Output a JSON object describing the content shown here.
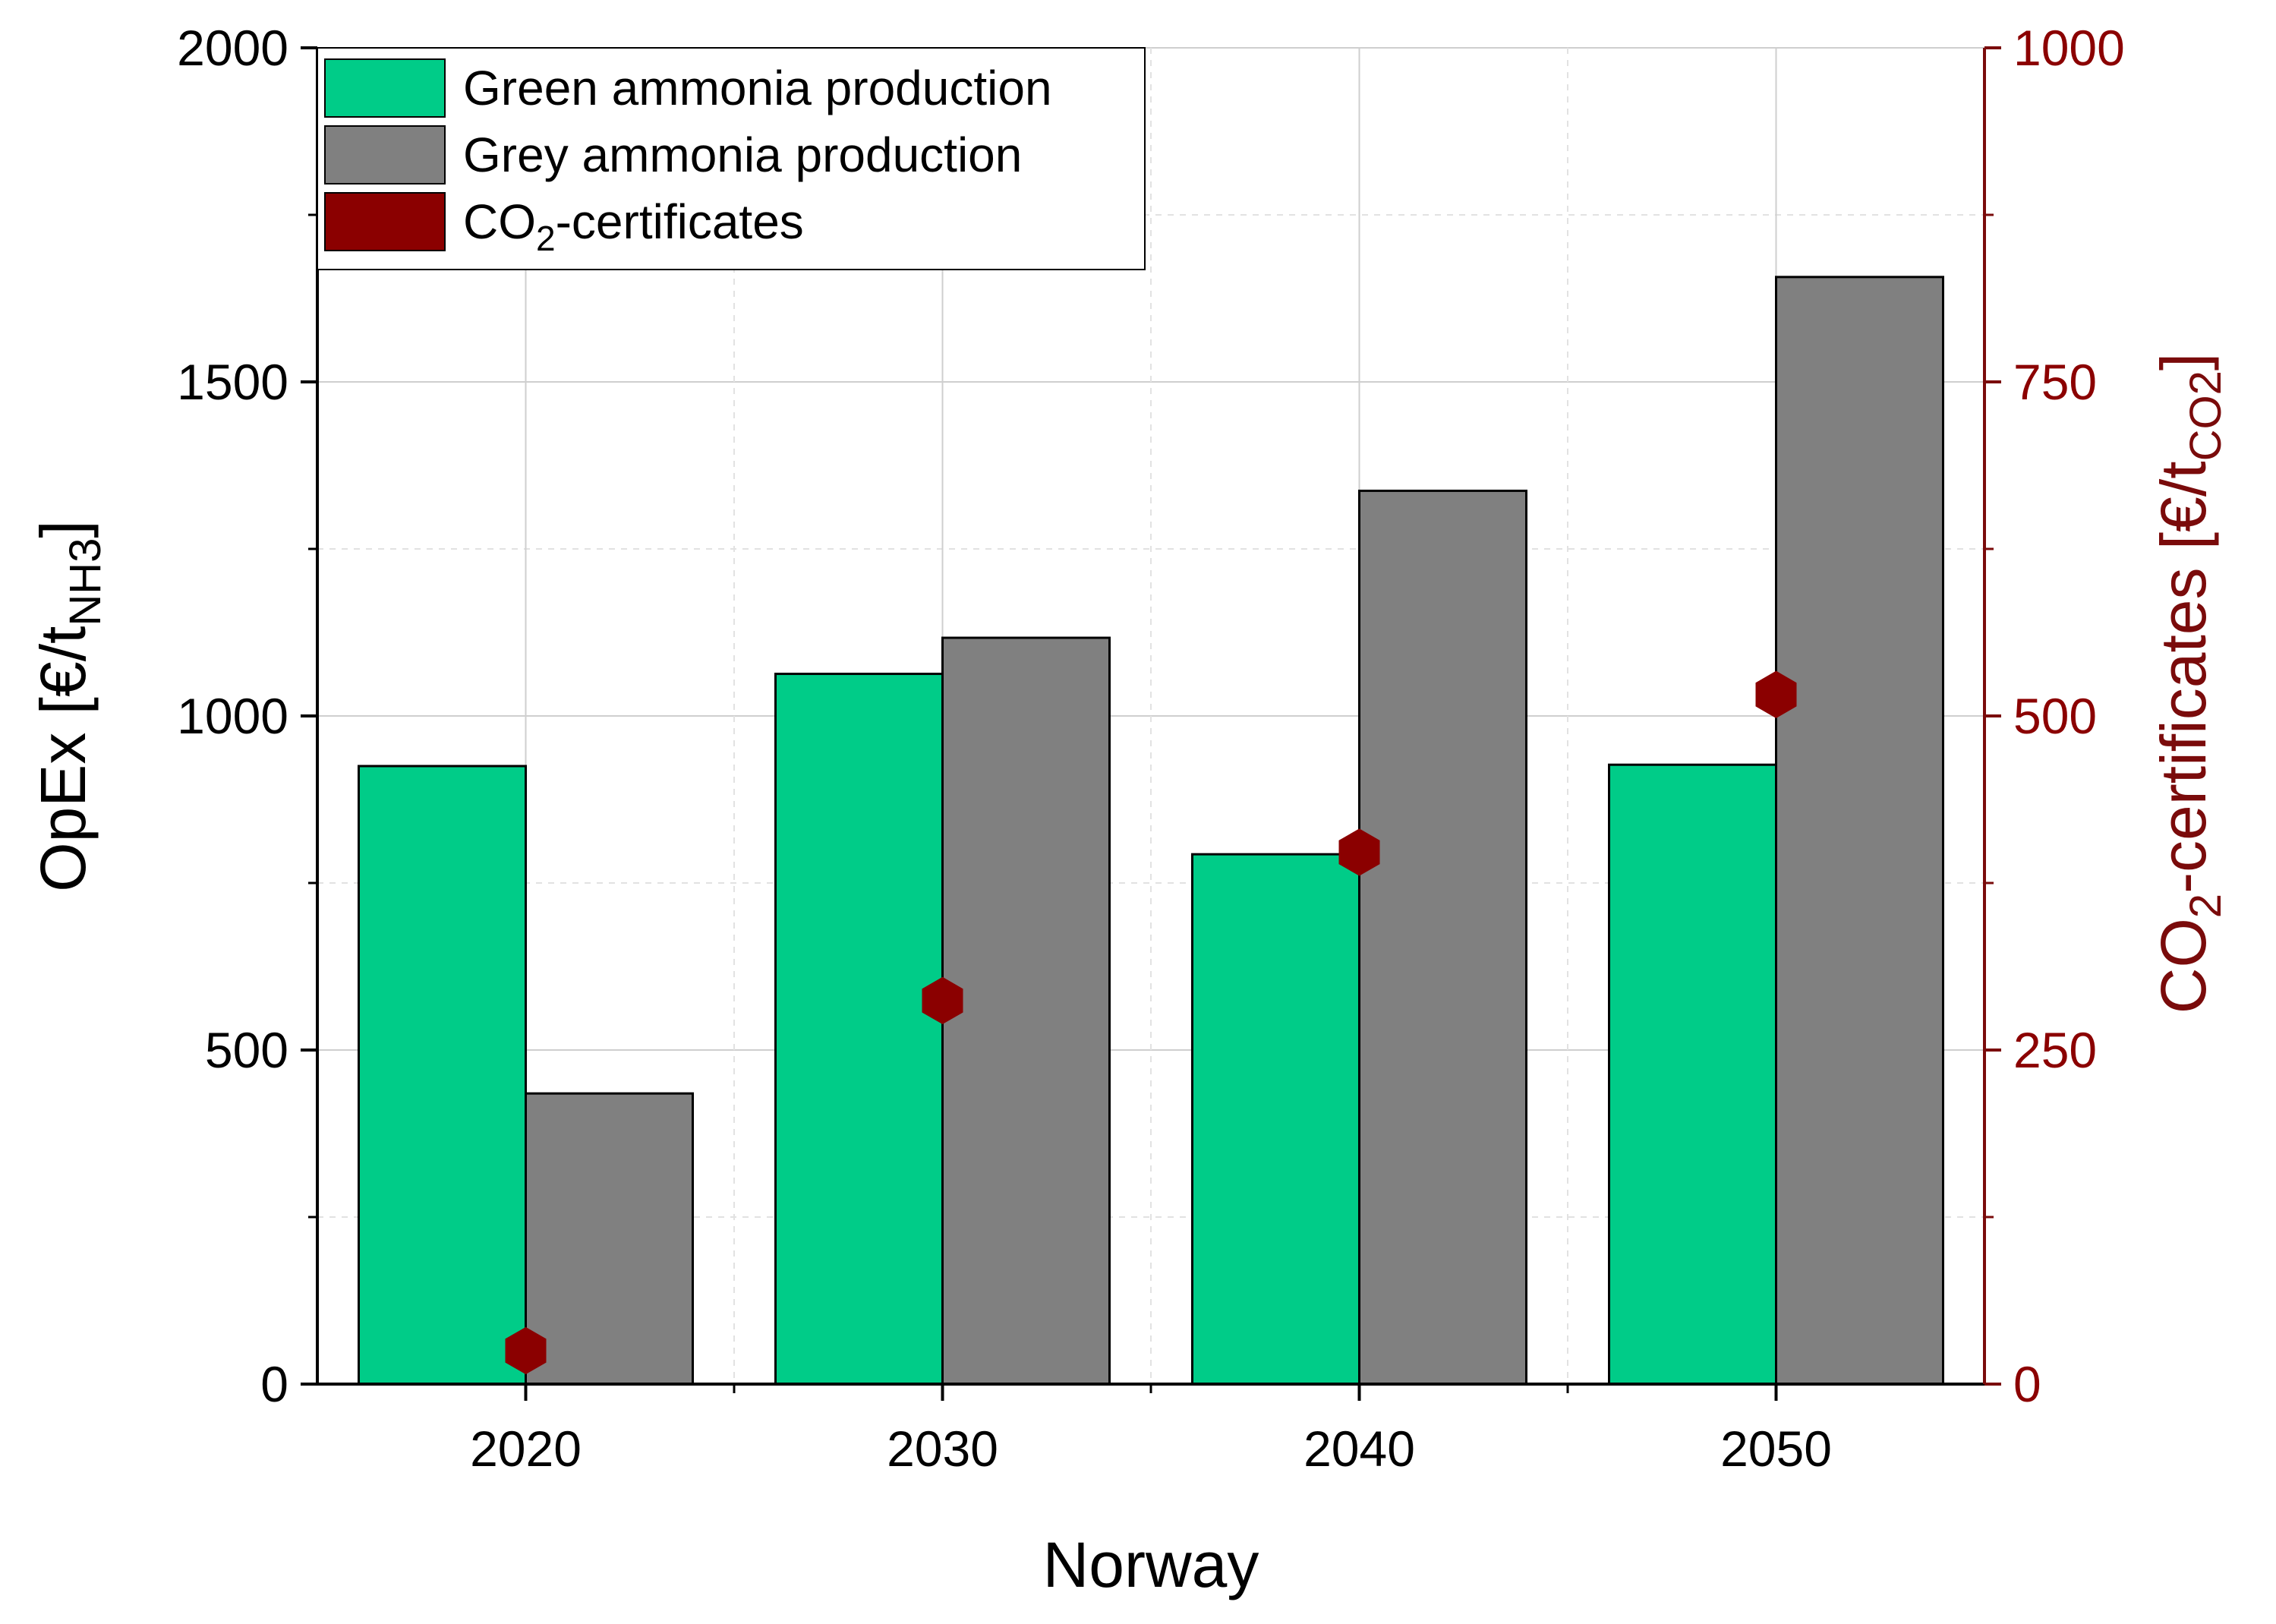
{
  "chart_data": {
    "type": "bar",
    "xlabel": "Norway",
    "ylabel": {
      "main": "OpEx [€/t",
      "sub": "NH3",
      "close": "]"
    },
    "y2label": {
      "pre": "CO",
      "pre_sub": "2",
      "mid": "-certificates [€/t",
      "sub": "CO2",
      "close": "]"
    },
    "categories": [
      "2020",
      "2030",
      "2040",
      "2050"
    ],
    "ylim": [
      0,
      2000
    ],
    "yticks": [
      0,
      500,
      1000,
      1500,
      2000
    ],
    "y2lim": [
      0,
      1000
    ],
    "y2ticks": [
      0,
      250,
      500,
      750,
      1000
    ],
    "grid": true,
    "legend_position": "top-left",
    "series": [
      {
        "name": "Green ammonia production",
        "type": "bar",
        "axis": "left",
        "color": "#00cc88",
        "values": [
          925,
          1063,
          793,
          927
        ]
      },
      {
        "name": "Grey ammonia production",
        "type": "bar",
        "axis": "left",
        "color": "#808080",
        "values": [
          435,
          1117,
          1337,
          1657
        ]
      },
      {
        "name": "CO2-certificates",
        "type": "scatter",
        "axis": "right",
        "color": "#8b0000",
        "values": [
          25,
          287,
          398,
          516
        ]
      }
    ],
    "legend": [
      {
        "pre": "Green ammonia production"
      },
      {
        "pre": "Grey ammonia production"
      },
      {
        "pre": "CO",
        "sub": "2",
        "post": "-certificates"
      }
    ],
    "colors": {
      "right_axis": "#7a0b0b",
      "grid": "#cfcfcf"
    }
  }
}
